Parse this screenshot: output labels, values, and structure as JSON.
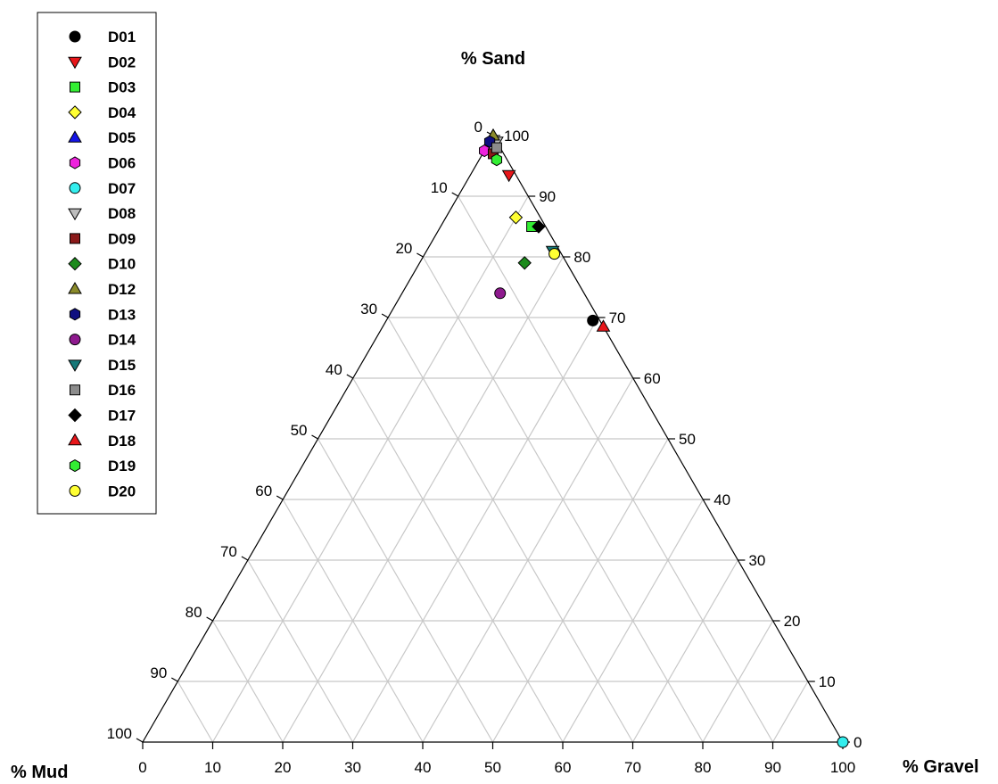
{
  "chart_data": {
    "type": "scatter",
    "subtype": "ternary",
    "axes": {
      "top": "% Sand",
      "left": "% Mud",
      "right": "% Gravel"
    },
    "ticks": [
      0,
      10,
      20,
      30,
      40,
      50,
      60,
      70,
      80,
      90,
      100
    ],
    "grid": true,
    "legend_position": "top-left",
    "series": [
      {
        "name": "D01",
        "marker": "circle",
        "color": "#000000",
        "sand": 69.5,
        "gravel": 29.5,
        "mud": 1.0
      },
      {
        "name": "D02",
        "marker": "triangle-down",
        "color": "#e8161a",
        "sand": 93.5,
        "gravel": 5.5,
        "mud": 1.0
      },
      {
        "name": "D03",
        "marker": "square",
        "color": "#33ee33",
        "sand": 85.0,
        "gravel": 13.0,
        "mud": 2.0
      },
      {
        "name": "D04",
        "marker": "diamond",
        "color": "#ffff33",
        "sand": 86.5,
        "gravel": 10.0,
        "mud": 3.5
      },
      {
        "name": "D05",
        "marker": "triangle-up",
        "color": "#1414e6",
        "sand": 100,
        "gravel": 0,
        "mud": 0
      },
      {
        "name": "D06",
        "marker": "hexagon",
        "color": "#ee22dd",
        "sand": 97.5,
        "gravel": 0,
        "mud": 2.5
      },
      {
        "name": "D07",
        "marker": "circle",
        "color": "#33eeee",
        "sand": 0,
        "gravel": 100,
        "mud": 0
      },
      {
        "name": "D08",
        "marker": "triangle-down",
        "color": "#bdbdbd",
        "sand": 99.0,
        "gravel": 1.0,
        "mud": 0
      },
      {
        "name": "D09",
        "marker": "square",
        "color": "#8b1a1a",
        "sand": 97.0,
        "gravel": 1.5,
        "mud": 1.5
      },
      {
        "name": "D10",
        "marker": "diamond",
        "color": "#1c8a1c",
        "sand": 79.0,
        "gravel": 15.0,
        "mud": 6.0
      },
      {
        "name": "D12",
        "marker": "triangle-up",
        "color": "#8a8a2a",
        "sand": 100,
        "gravel": 0,
        "mud": 0
      },
      {
        "name": "D13",
        "marker": "hexagon",
        "color": "#0f0f80",
        "sand": 99.0,
        "gravel": 0,
        "mud": 1.0
      },
      {
        "name": "D14",
        "marker": "circle",
        "color": "#8e1a8e",
        "sand": 74.0,
        "gravel": 14.0,
        "mud": 12.0
      },
      {
        "name": "D15",
        "marker": "triangle-down",
        "color": "#167878",
        "sand": 81.0,
        "gravel": 18.0,
        "mud": 1.0
      },
      {
        "name": "D16",
        "marker": "square",
        "color": "#8c8c8c",
        "sand": 98.0,
        "gravel": 1.5,
        "mud": 0.5
      },
      {
        "name": "D17",
        "marker": "diamond",
        "color": "#000000",
        "sand": 85.0,
        "gravel": 14.0,
        "mud": 1.0
      },
      {
        "name": "D18",
        "marker": "triangle-up",
        "color": "#e8161a",
        "sand": 68.5,
        "gravel": 31.5,
        "mud": 0
      },
      {
        "name": "D19",
        "marker": "hexagon",
        "color": "#33ee33",
        "sand": 96.0,
        "gravel": 2.5,
        "mud": 1.5
      },
      {
        "name": "D20",
        "marker": "circle",
        "color": "#ffff33",
        "sand": 80.5,
        "gravel": 18.5,
        "mud": 1.0
      }
    ]
  }
}
